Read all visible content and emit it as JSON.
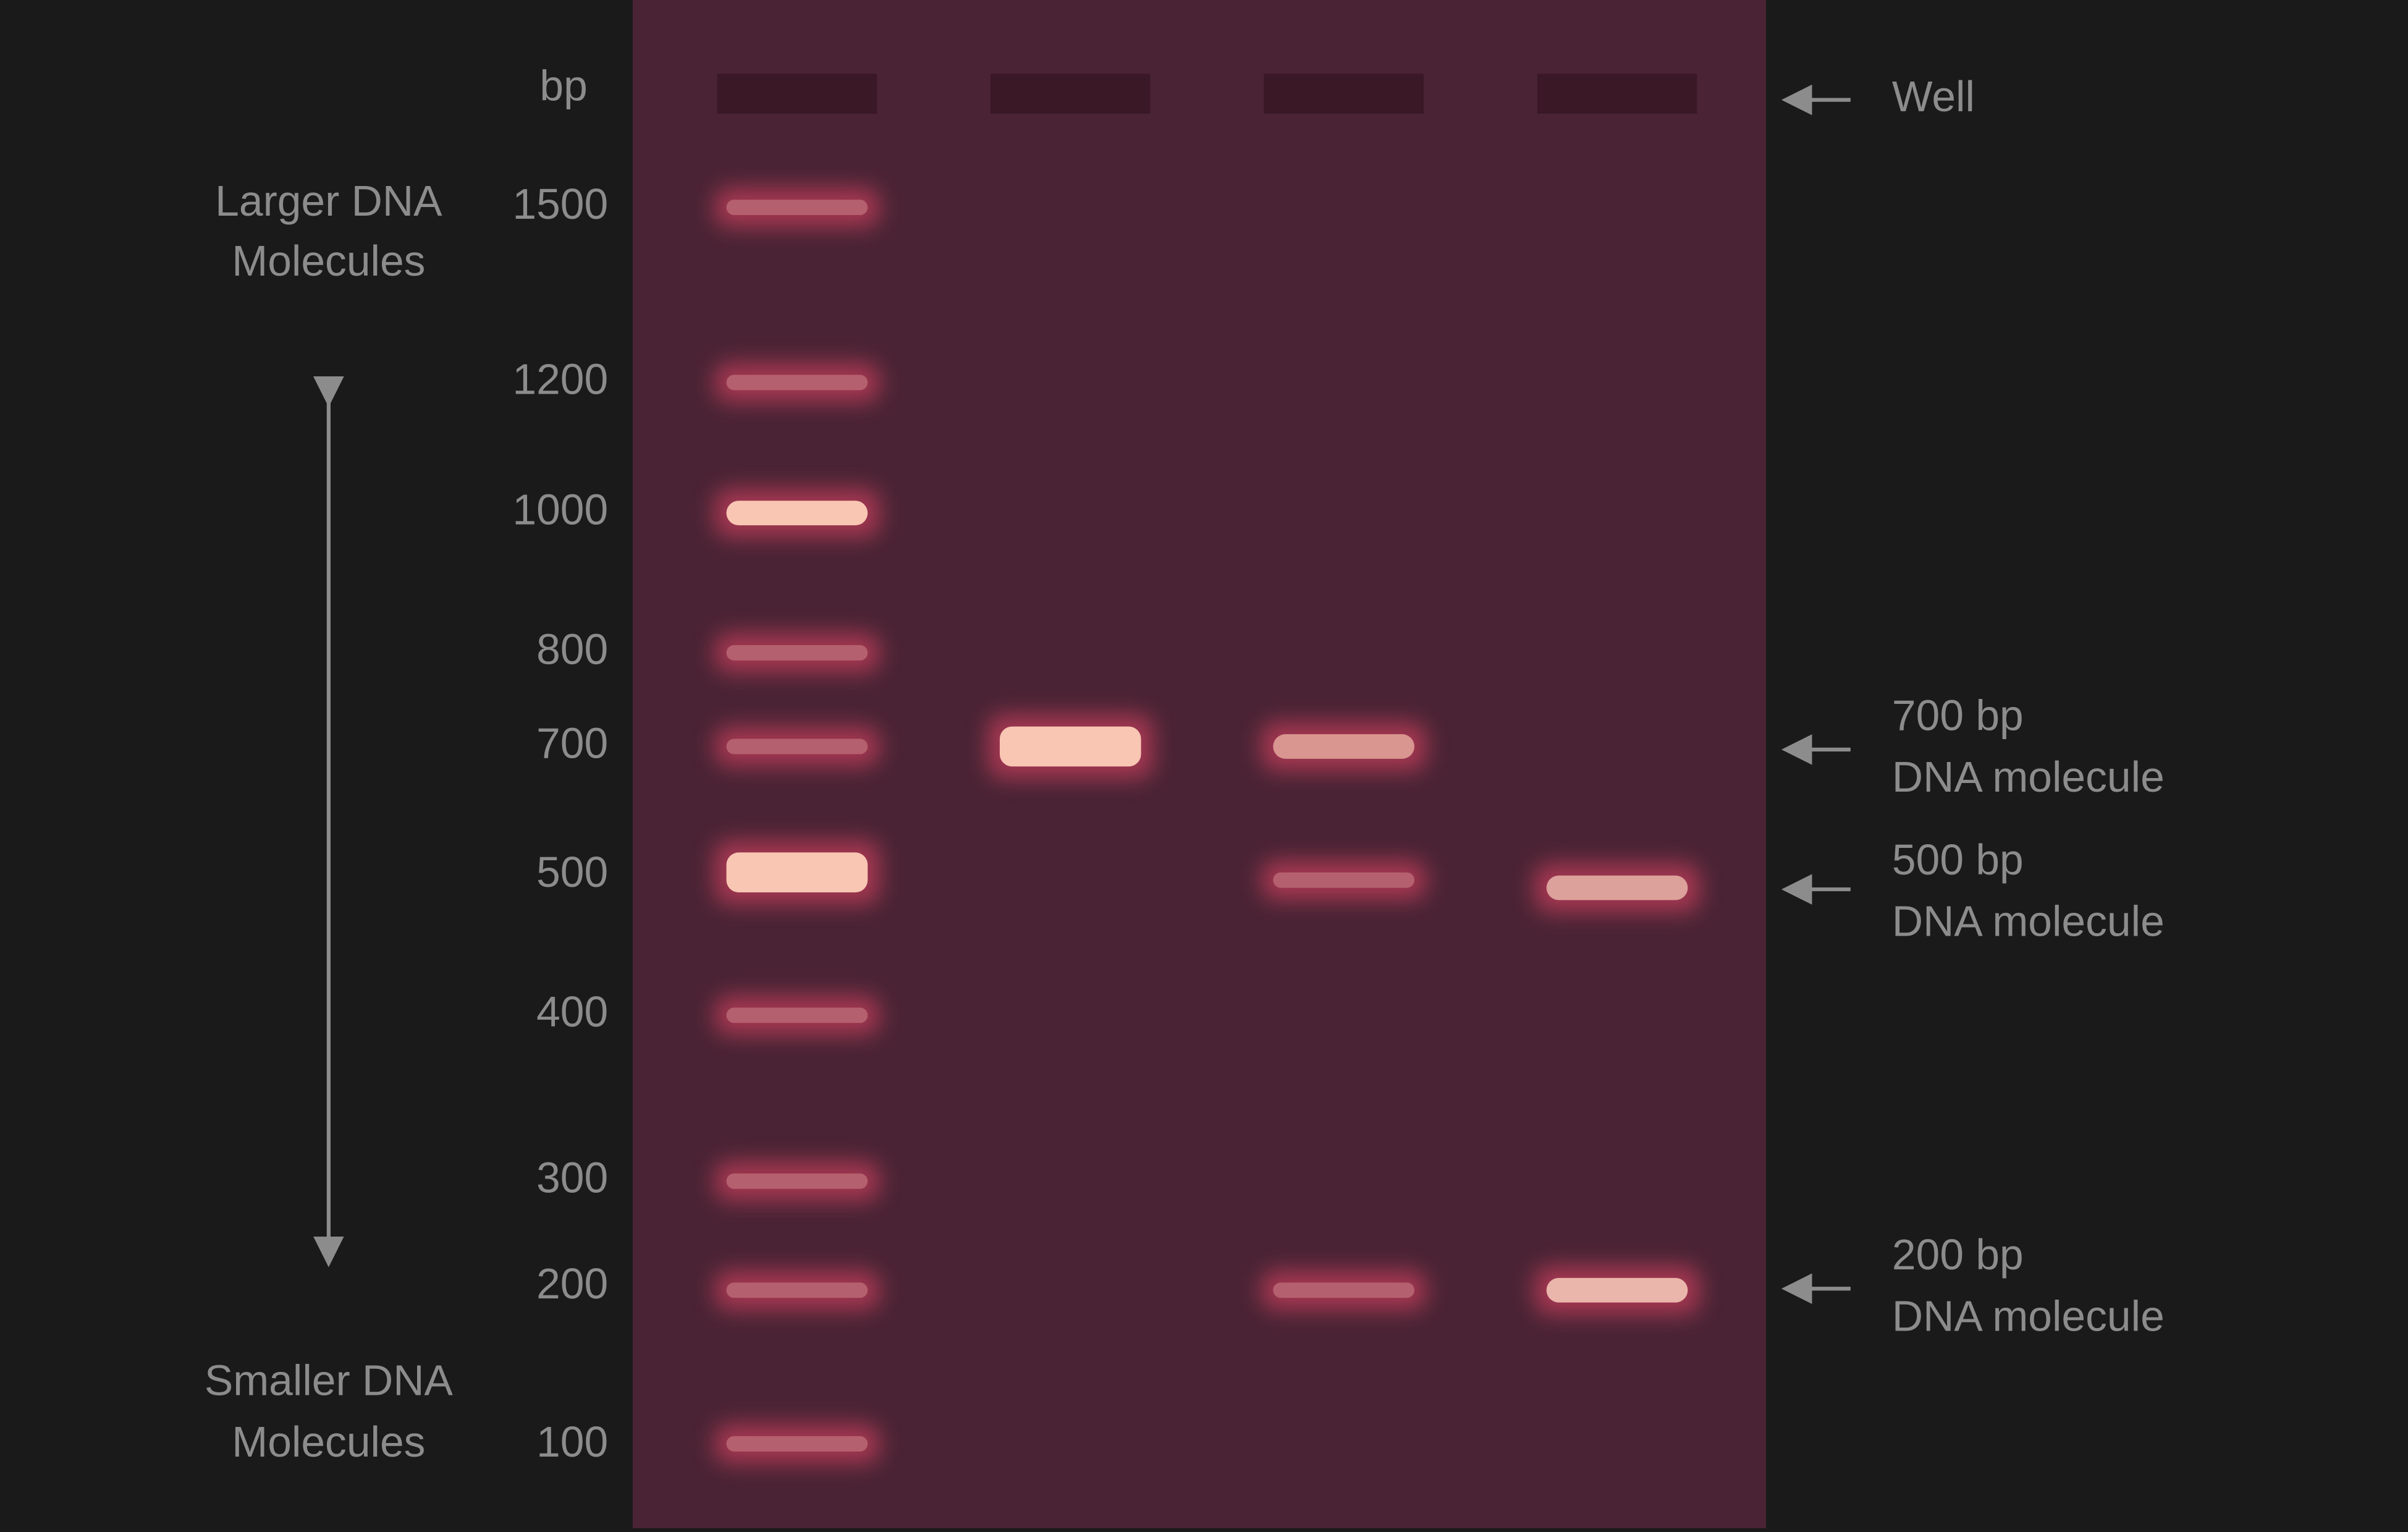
{
  "axis_label": "bp",
  "ladder_labels": [
    "1500",
    "1200",
    "1000",
    "800",
    "700",
    "500",
    "400",
    "300",
    "200",
    "100"
  ],
  "left_labels": {
    "top": [
      "Larger DNA",
      "Molecules"
    ],
    "bottom": [
      "Smaller DNA",
      "Molecules"
    ]
  },
  "right_labels": {
    "well": "Well",
    "bands": [
      [
        "700 bp",
        "DNA molecule"
      ],
      [
        "500 bp",
        "DNA molecule"
      ],
      [
        "200 bp",
        "DNA molecule"
      ]
    ]
  }
}
